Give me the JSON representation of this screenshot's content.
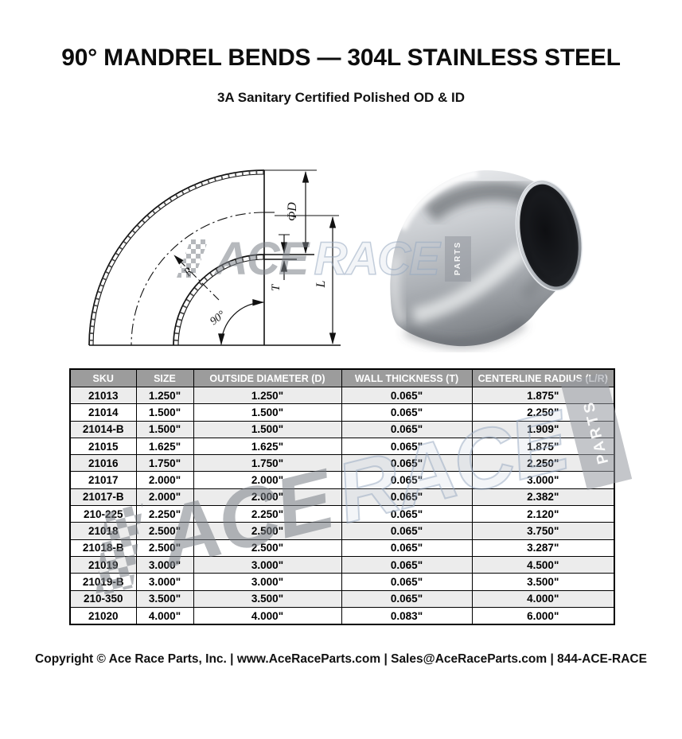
{
  "page": {
    "title": "90° MANDREL BENDS — 304L STAINLESS STEEL",
    "subtitle": "3A Sanitary Certified Polished OD & ID",
    "footer": "Copyright © Ace Race Parts, Inc. | www.AceRaceParts.com | Sales@AceRaceParts.com | 844-ACE-RACE"
  },
  "diagram": {
    "labels": {
      "diameter": "ΦD",
      "thickness": "T",
      "length": "L",
      "radius": "R",
      "angle": "90°"
    }
  },
  "watermark": {
    "ace": "ACE",
    "race": "RACE",
    "parts": "PARTS"
  },
  "table": {
    "columns": [
      "SKU",
      "SIZE",
      "OUTSIDE DIAMETER (D)",
      "WALL THICKNESS (T)",
      "CENTERLINE RADIUS (L/R)"
    ],
    "rows": [
      [
        "21013",
        "1.250\"",
        "1.250\"",
        "0.065\"",
        "1.875\""
      ],
      [
        "21014",
        "1.500\"",
        "1.500\"",
        "0.065\"",
        "2.250\""
      ],
      [
        "21014-B",
        "1.500\"",
        "1.500\"",
        "0.065\"",
        "1.909\""
      ],
      [
        "21015",
        "1.625\"",
        "1.625\"",
        "0.065\"",
        "1.875\""
      ],
      [
        "21016",
        "1.750\"",
        "1.750\"",
        "0.065\"",
        "2.250\""
      ],
      [
        "21017",
        "2.000\"",
        "2.000\"",
        "0.065\"",
        "3.000\""
      ],
      [
        "21017-B",
        "2.000\"",
        "2.000\"",
        "0.065\"",
        "2.382\""
      ],
      [
        "210-225",
        "2.250\"",
        "2.250\"",
        "0.065\"",
        "2.120\""
      ],
      [
        "21018",
        "2.500\"",
        "2.500\"",
        "0.065\"",
        "3.750\""
      ],
      [
        "21018-B",
        "2.500\"",
        "2.500\"",
        "0.065\"",
        "3.287\""
      ],
      [
        "21019",
        "3.000\"",
        "3.000\"",
        "0.065\"",
        "4.500\""
      ],
      [
        "21019-B",
        "3.000\"",
        "3.000\"",
        "0.065\"",
        "3.500\""
      ],
      [
        "210-350",
        "3.500\"",
        "3.500\"",
        "0.065\"",
        "4.000\""
      ],
      [
        "21020",
        "4.000\"",
        "4.000\"",
        "0.083\"",
        "6.000\""
      ]
    ],
    "colors": {
      "header_bg": "#9c9c9c",
      "header_text": "#ffffff",
      "row_alt_bg": "#ececec",
      "border": "#000000"
    }
  }
}
